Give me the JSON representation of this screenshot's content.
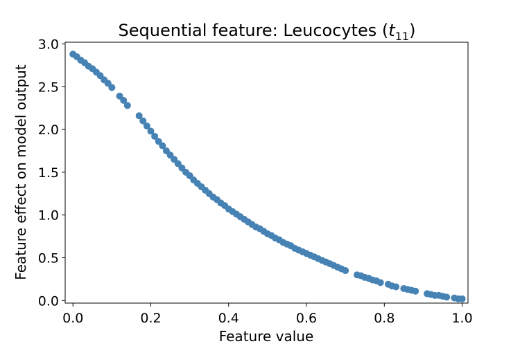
{
  "chart_data": {
    "type": "scatter",
    "title": "Sequential feature: Leucocytes (",
    "title_math_base": "t",
    "title_math_sub": "11",
    "title_suffix": ")",
    "xlabel": "Feature value",
    "ylabel": "Feature effect on model output",
    "xlim": [
      -0.02,
      1.015
    ],
    "ylim": [
      -0.03,
      3.02
    ],
    "xticks": [
      0.0,
      0.2,
      0.4,
      0.6,
      0.8,
      1.0
    ],
    "xtick_labels": [
      "0.0",
      "0.2",
      "0.4",
      "0.6",
      "0.8",
      "1.0"
    ],
    "yticks": [
      0.0,
      0.5,
      1.0,
      1.5,
      2.0,
      2.5,
      3.0
    ],
    "ytick_labels": [
      "0.0",
      "0.5",
      "1.0",
      "1.5",
      "2.0",
      "2.5",
      "3.0"
    ],
    "grid": false,
    "marker_color": "#4682b4",
    "series": [
      {
        "x": [
          0.0,
          0.01,
          0.02,
          0.03,
          0.04,
          0.05,
          0.06,
          0.07,
          0.08,
          0.09,
          0.1,
          0.12,
          0.13,
          0.14,
          0.17,
          0.18,
          0.19,
          0.2,
          0.21,
          0.22,
          0.23,
          0.24,
          0.25,
          0.26,
          0.27,
          0.28,
          0.29,
          0.3,
          0.31,
          0.32,
          0.33,
          0.34,
          0.35,
          0.36,
          0.37,
          0.38,
          0.39,
          0.4,
          0.41,
          0.42,
          0.43,
          0.44,
          0.45,
          0.46,
          0.47,
          0.48,
          0.49,
          0.5,
          0.51,
          0.52,
          0.53,
          0.54,
          0.55,
          0.56,
          0.57,
          0.58,
          0.59,
          0.6,
          0.61,
          0.62,
          0.63,
          0.64,
          0.65,
          0.66,
          0.67,
          0.68,
          0.69,
          0.7,
          0.73,
          0.74,
          0.75,
          0.76,
          0.77,
          0.78,
          0.79,
          0.81,
          0.82,
          0.83,
          0.85,
          0.86,
          0.87,
          0.88,
          0.91,
          0.92,
          0.93,
          0.94,
          0.95,
          0.96,
          0.98,
          0.99,
          1.0
        ],
        "y": [
          2.88,
          2.85,
          2.81,
          2.78,
          2.74,
          2.71,
          2.67,
          2.63,
          2.58,
          2.54,
          2.49,
          2.39,
          2.34,
          2.28,
          2.16,
          2.1,
          2.04,
          1.98,
          1.92,
          1.86,
          1.81,
          1.75,
          1.7,
          1.65,
          1.6,
          1.55,
          1.5,
          1.46,
          1.41,
          1.37,
          1.33,
          1.29,
          1.25,
          1.21,
          1.18,
          1.14,
          1.11,
          1.07,
          1.04,
          1.01,
          0.98,
          0.95,
          0.92,
          0.89,
          0.86,
          0.84,
          0.81,
          0.78,
          0.76,
          0.73,
          0.71,
          0.68,
          0.66,
          0.64,
          0.61,
          0.59,
          0.57,
          0.55,
          0.53,
          0.51,
          0.49,
          0.47,
          0.45,
          0.43,
          0.41,
          0.39,
          0.37,
          0.35,
          0.3,
          0.29,
          0.27,
          0.26,
          0.24,
          0.23,
          0.21,
          0.19,
          0.17,
          0.16,
          0.14,
          0.13,
          0.12,
          0.11,
          0.08,
          0.07,
          0.06,
          0.06,
          0.05,
          0.04,
          0.03,
          0.02,
          0.02
        ]
      }
    ]
  }
}
